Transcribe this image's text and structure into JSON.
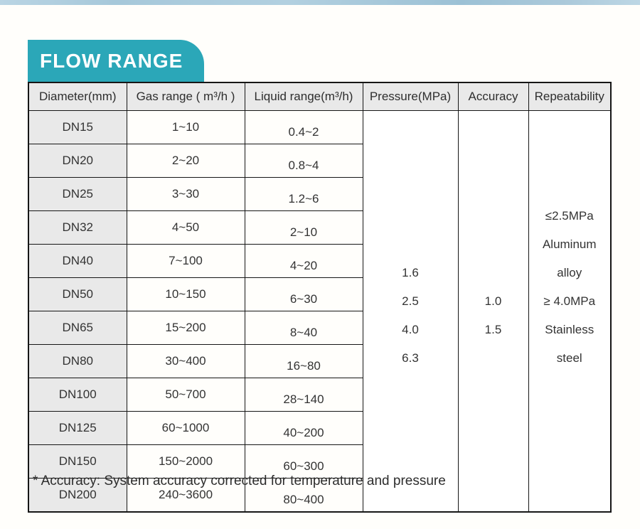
{
  "banner": {
    "title": "FLOW RANGE",
    "background": "#2ba7b8",
    "text_color": "#ffffff"
  },
  "accent": {
    "top_bar_color": "#a6c8da"
  },
  "table": {
    "headers": [
      "Diameter(mm)",
      "Gas range ( m³/h )",
      "Liquid range(m³/h)",
      "Pressure(MPa)",
      "Accuracy",
      "Repeatability"
    ],
    "rows": [
      {
        "diameter": "DN15",
        "gas": "1~10",
        "liquid": "0.4~2"
      },
      {
        "diameter": "DN20",
        "gas": "2~20",
        "liquid": "0.8~4"
      },
      {
        "diameter": "DN25",
        "gas": "3~30",
        "liquid": "1.2~6"
      },
      {
        "diameter": "DN32",
        "gas": "4~50",
        "liquid": "2~10"
      },
      {
        "diameter": "DN40",
        "gas": "7~100",
        "liquid": "4~20"
      },
      {
        "diameter": "DN50",
        "gas": "10~150",
        "liquid": "6~30"
      },
      {
        "diameter": "DN65",
        "gas": "15~200",
        "liquid": "8~40"
      },
      {
        "diameter": "DN80",
        "gas": "30~400",
        "liquid": "16~80"
      },
      {
        "diameter": "DN100",
        "gas": "50~700",
        "liquid": "28~140"
      },
      {
        "diameter": "DN125",
        "gas": "60~1000",
        "liquid": "40~200"
      },
      {
        "diameter": "DN150",
        "gas": "150~2000",
        "liquid": "60~300"
      },
      {
        "diameter": "DN200",
        "gas": "240~3600",
        "liquid": "80~400"
      }
    ],
    "pressure_values": [
      "1.6",
      "2.5",
      "4.0",
      "6.3"
    ],
    "accuracy_values": [
      "1.0",
      "1.5"
    ],
    "repeatability_lines": [
      "≤2.5MPa",
      "Aluminum",
      "alloy",
      "≥ 4.0MPa",
      "Stainless",
      "steel"
    ]
  },
  "footnote": "* Accuracy: System accuracy corrected for temperature and pressure"
}
